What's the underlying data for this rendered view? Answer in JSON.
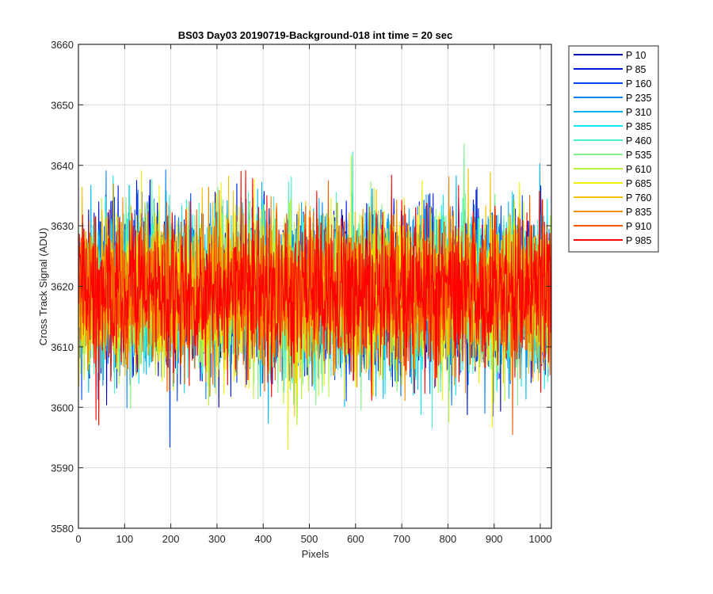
{
  "chart_data": {
    "type": "line",
    "title": "BS03 Day03 20190719-Background-018 int time = 20 sec",
    "xlabel": "Pixels",
    "ylabel": "Cross Track Signal (ADU)",
    "xlim": [
      0,
      1024
    ],
    "ylim": [
      3580,
      3660
    ],
    "xticks": [
      "0",
      "100",
      "200",
      "300",
      "400",
      "500",
      "600",
      "700",
      "800",
      "900",
      "1000"
    ],
    "yticks": [
      "3580",
      "3590",
      "3600",
      "3610",
      "3620",
      "3630",
      "3640",
      "3650",
      "3660"
    ],
    "grid": true,
    "legend_position": "outside-top-right",
    "signal_summary": {
      "mean": 3619,
      "min": 3588,
      "max": 3652,
      "noise_std": 8
    },
    "series": [
      {
        "name": "P 10",
        "color": "#0000b4"
      },
      {
        "name": "P 85",
        "color": "#0018dc"
      },
      {
        "name": "P 160",
        "color": "#0046f4"
      },
      {
        "name": "P 235",
        "color": "#0a82f0"
      },
      {
        "name": "P 310",
        "color": "#00b4f0"
      },
      {
        "name": "P 385",
        "color": "#10e6f0"
      },
      {
        "name": "P 460",
        "color": "#46f0c8"
      },
      {
        "name": "P 535",
        "color": "#80f28a"
      },
      {
        "name": "P 610",
        "color": "#b8f23c"
      },
      {
        "name": "P 685",
        "color": "#f0f000"
      },
      {
        "name": "P 760",
        "color": "#f2c000"
      },
      {
        "name": "P 835",
        "color": "#f28c00"
      },
      {
        "name": "P 910",
        "color": "#f25a00"
      },
      {
        "name": "P 985",
        "color": "#ff0000"
      }
    ]
  }
}
